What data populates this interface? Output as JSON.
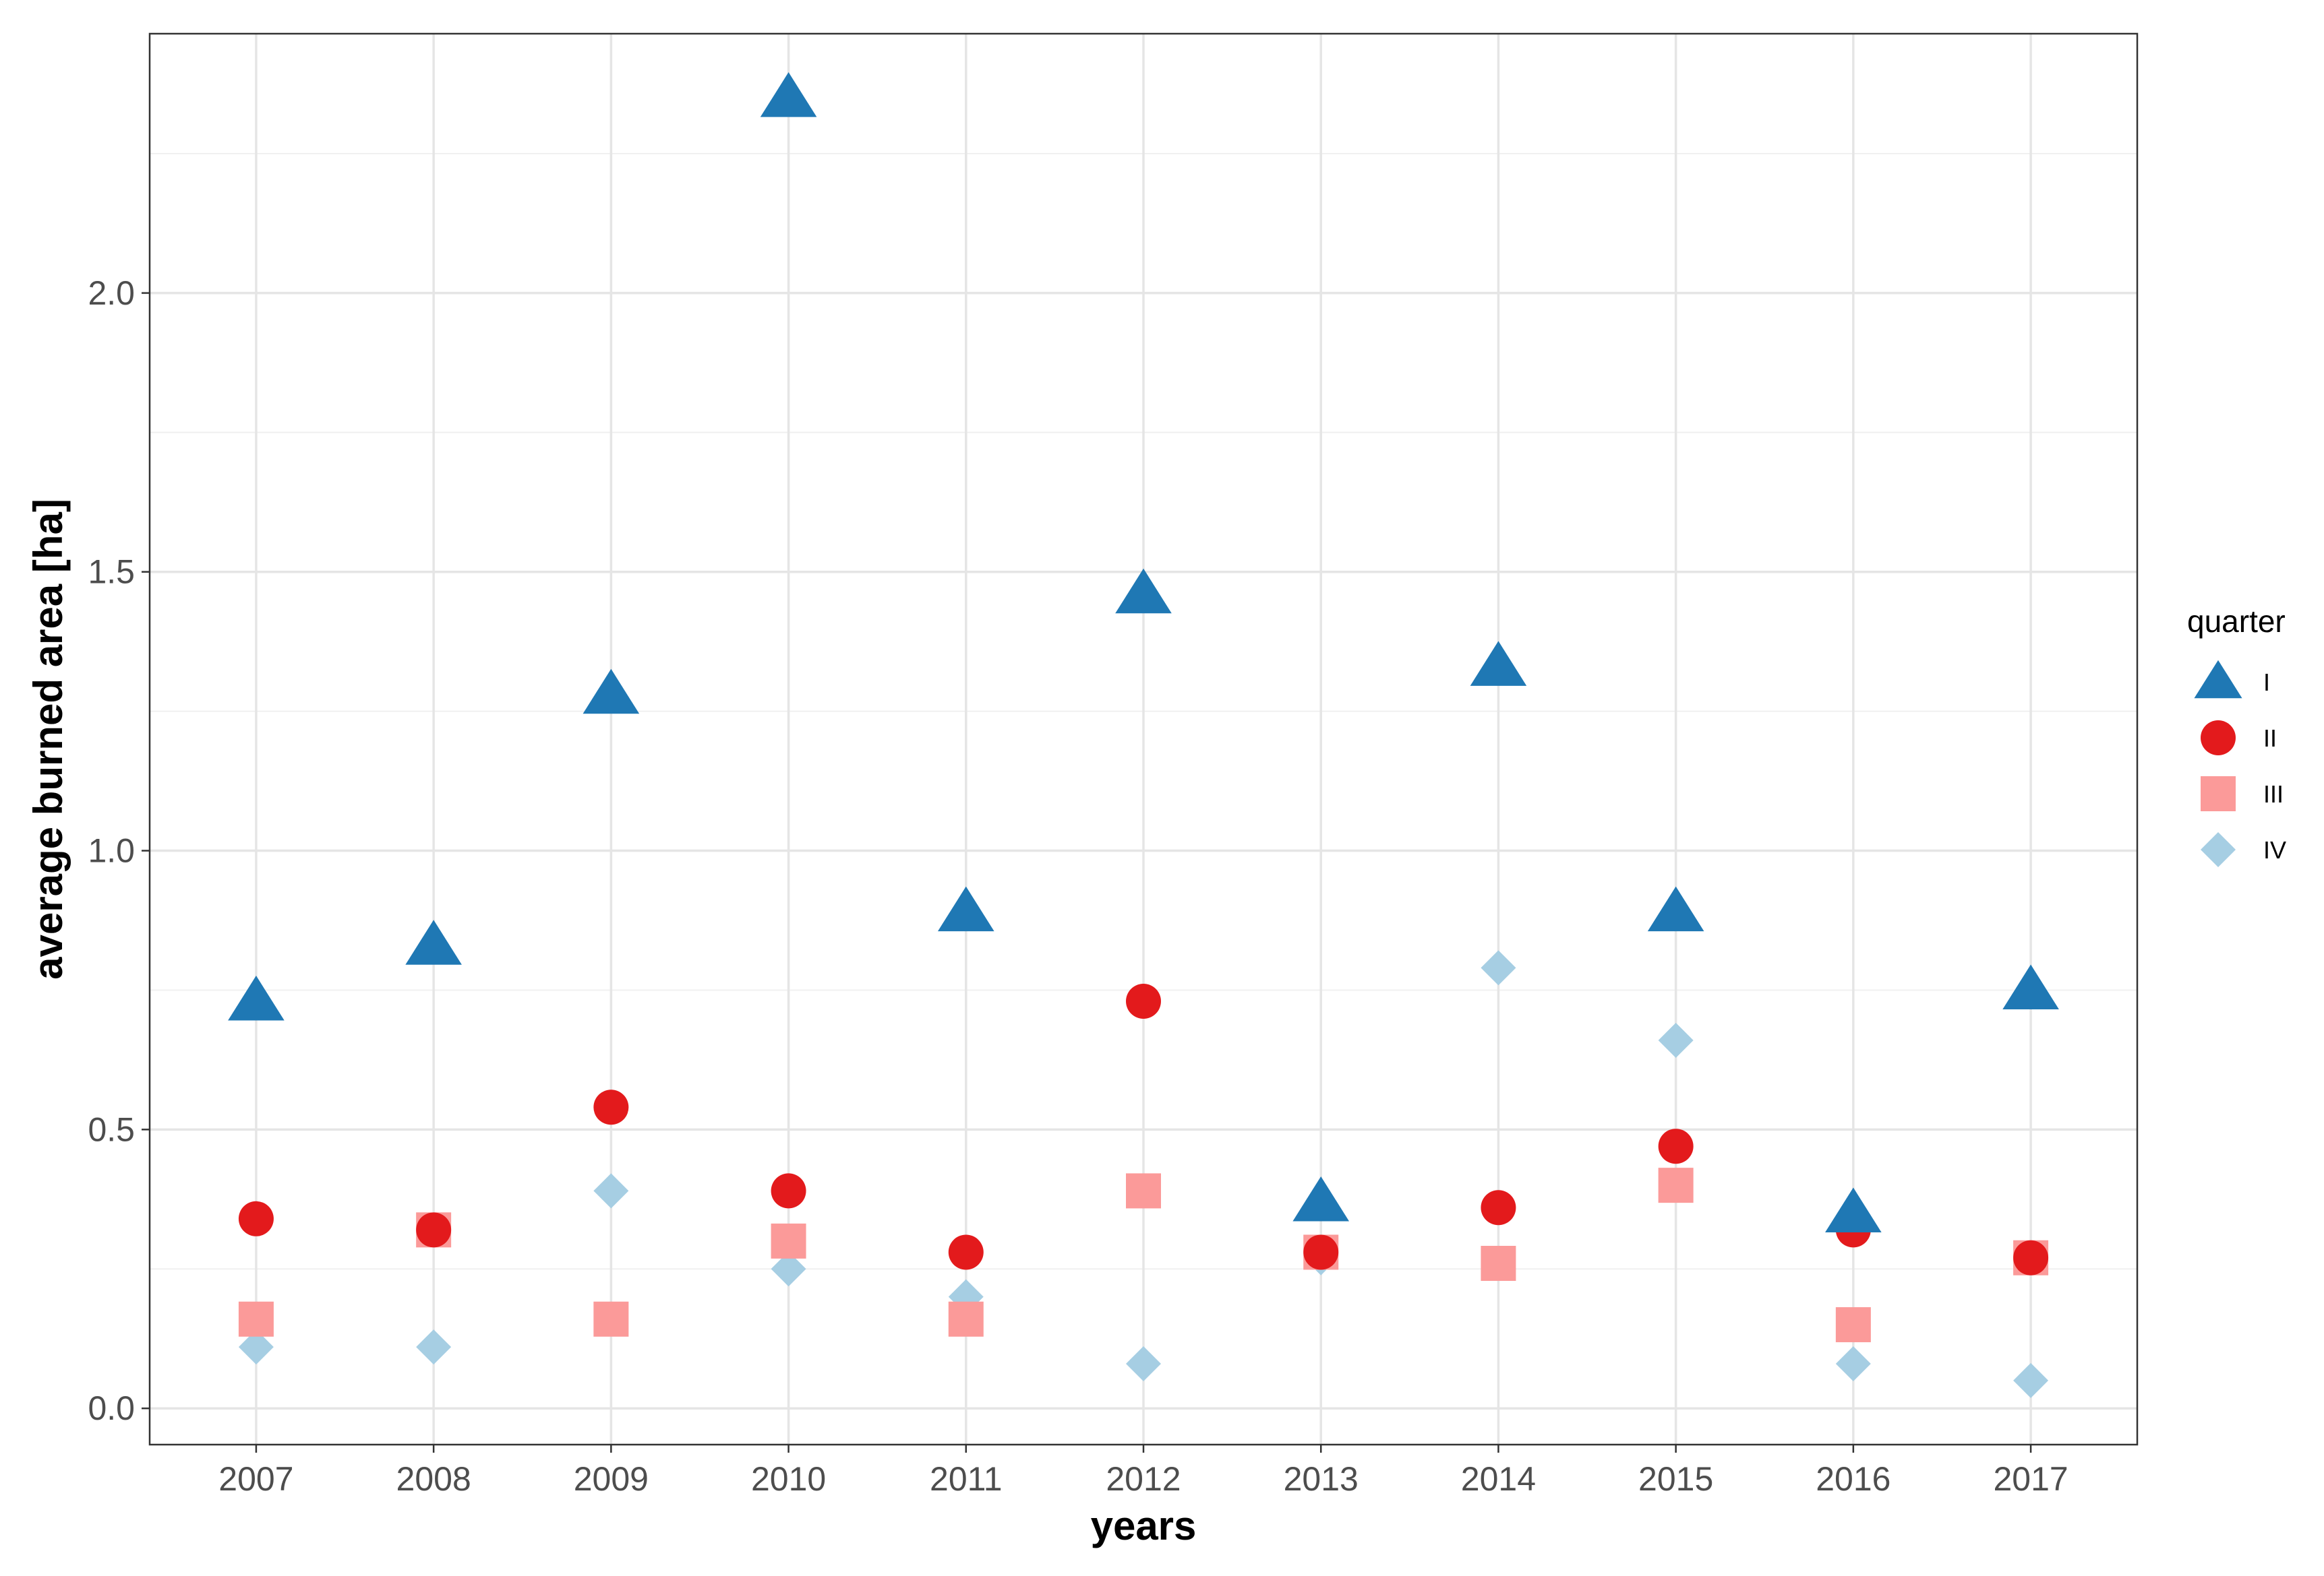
{
  "chart_data": {
    "type": "scatter",
    "title": "",
    "xlabel": "years",
    "ylabel": "average burned area [ha]",
    "x": [
      "2007",
      "2008",
      "2009",
      "2010",
      "2011",
      "2012",
      "2013",
      "2014",
      "2015",
      "2016",
      "2017"
    ],
    "xlim": [
      2006.4,
      2017.6
    ],
    "ylim": [
      -0.065,
      2.465
    ],
    "yticks": [
      "0.0",
      "0.5",
      "1.0",
      "1.5",
      "2.0"
    ],
    "grid": true,
    "legend": {
      "title": "quarter",
      "position": "right"
    },
    "series": [
      {
        "name": "I",
        "color": "#1f78b4",
        "marker": "triangle",
        "values": [
          0.73,
          0.83,
          1.28,
          2.35,
          0.89,
          1.46,
          0.37,
          1.33,
          0.89,
          0.35,
          0.75
        ]
      },
      {
        "name": "II",
        "color": "#e31a1c",
        "marker": "circle",
        "values": [
          0.34,
          0.32,
          0.54,
          0.39,
          0.28,
          0.73,
          0.28,
          0.36,
          0.47,
          0.32,
          0.27
        ]
      },
      {
        "name": "III",
        "color": "#fb9a99",
        "marker": "square",
        "values": [
          0.16,
          0.32,
          0.16,
          0.3,
          0.16,
          0.39,
          0.28,
          0.26,
          0.4,
          0.15,
          0.27
        ]
      },
      {
        "name": "IV",
        "color": "#a6cee3",
        "marker": "diamond",
        "values": [
          0.11,
          0.11,
          0.39,
          0.25,
          0.2,
          0.08,
          0.27,
          0.79,
          0.66,
          0.08,
          0.05
        ]
      }
    ]
  }
}
